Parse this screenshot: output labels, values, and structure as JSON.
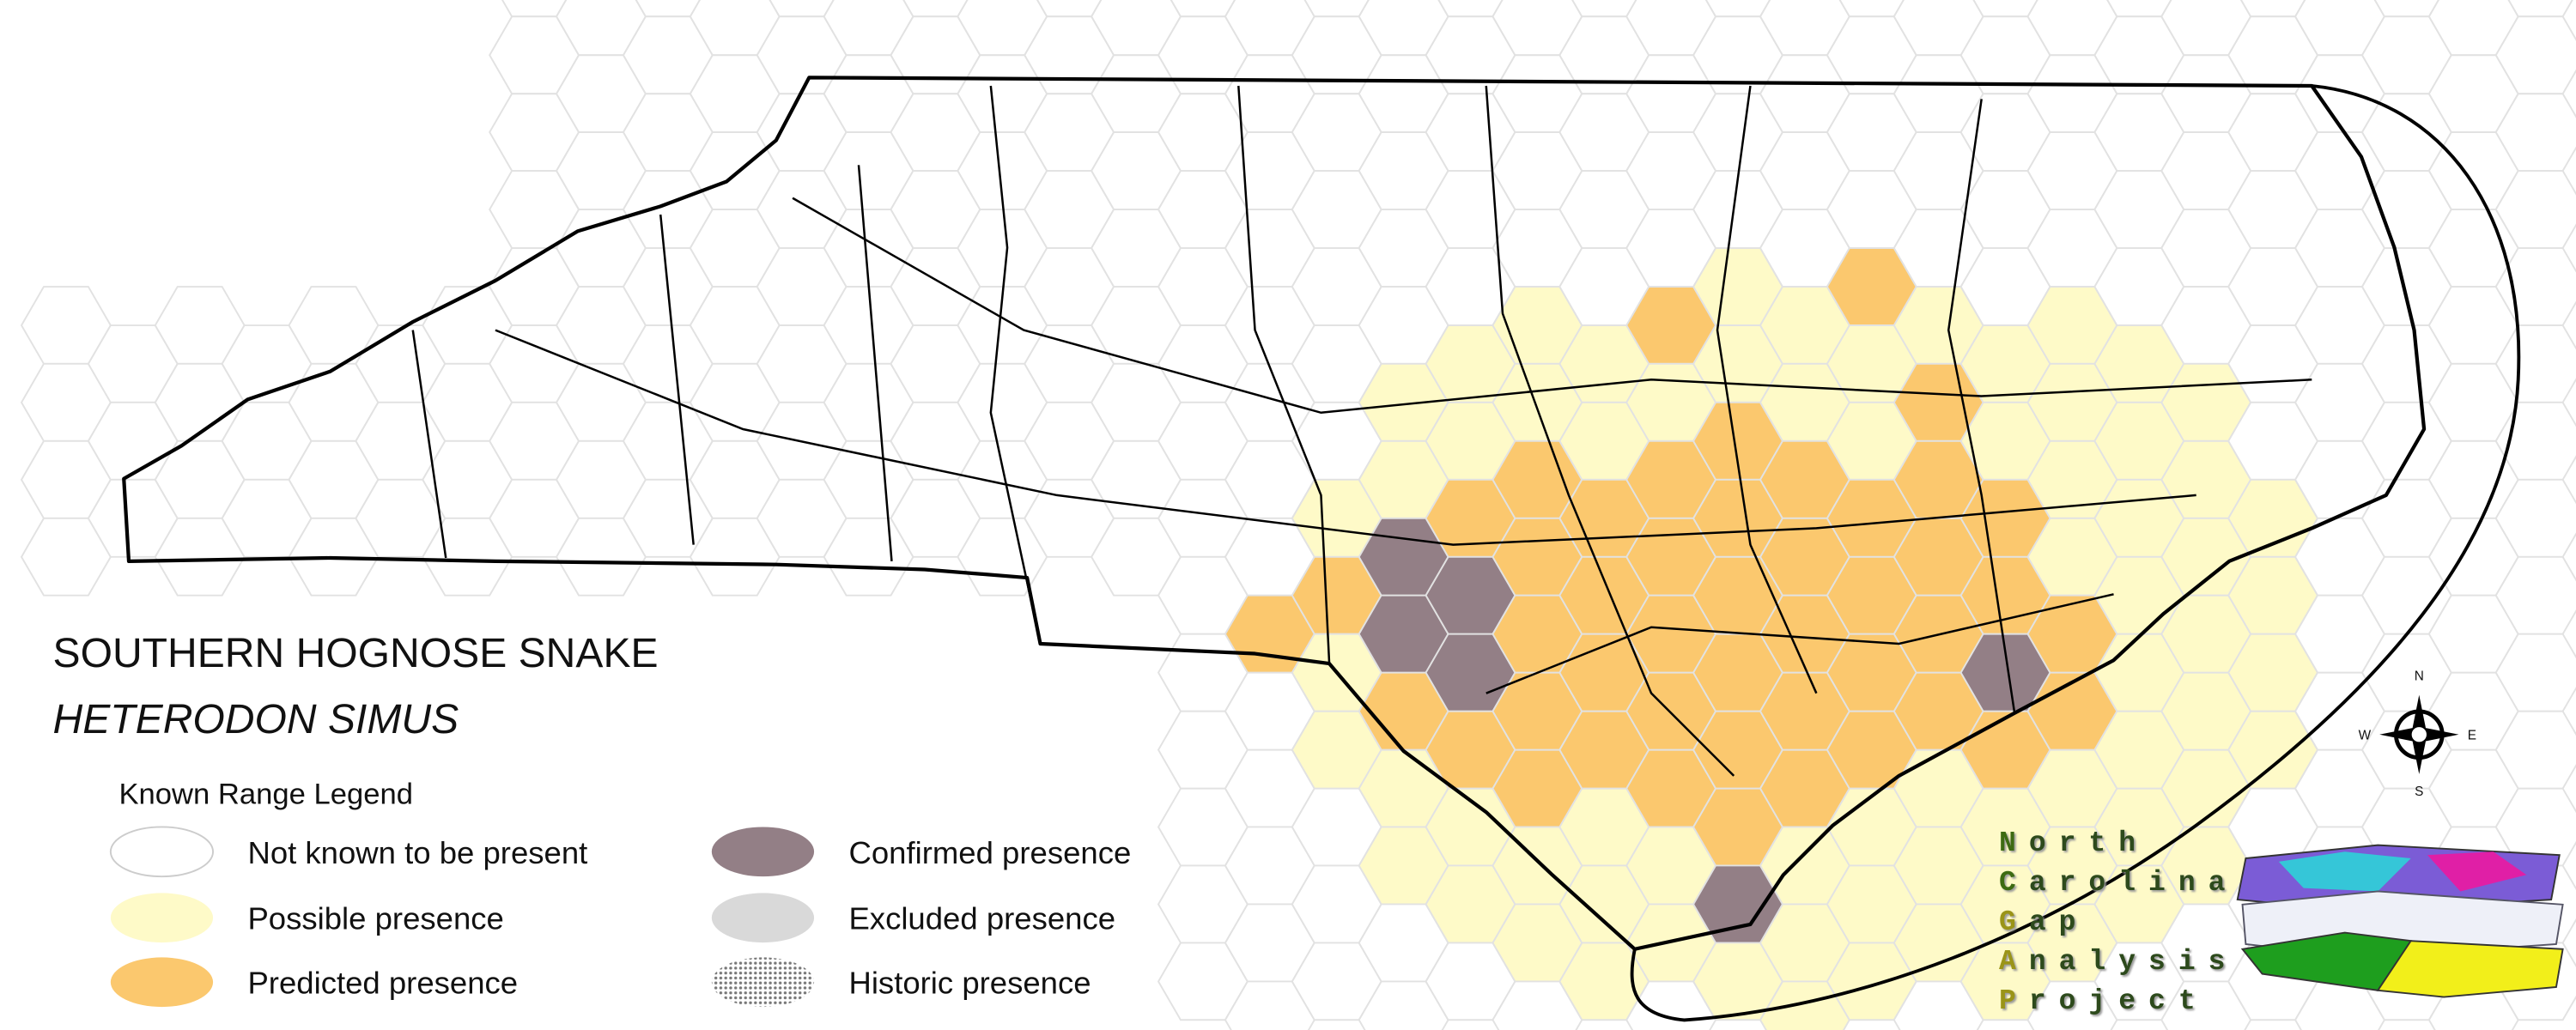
{
  "title": "SOUTHERN HOGNOSE SNAKE",
  "subtitle": "HETERODON SIMUS",
  "legend": {
    "title": "Known Range Legend",
    "items": [
      {
        "label": "Not known to be present",
        "color": "#ffffff"
      },
      {
        "label": "Possible presence",
        "color": "#fefac8"
      },
      {
        "label": "Predicted presence",
        "color": "#fbc86e"
      },
      {
        "label": "Confirmed presence",
        "color": "#937f86"
      },
      {
        "label": "Excluded presence",
        "color": "#d9d9d9"
      },
      {
        "label": "Historic presence",
        "color": "#bdbdbd"
      }
    ]
  },
  "compass": {
    "n": "N",
    "s": "S",
    "e": "E",
    "w": "W"
  },
  "logo": [
    "North",
    "Carolina",
    "Gap",
    "Analysis",
    "Project"
  ]
}
